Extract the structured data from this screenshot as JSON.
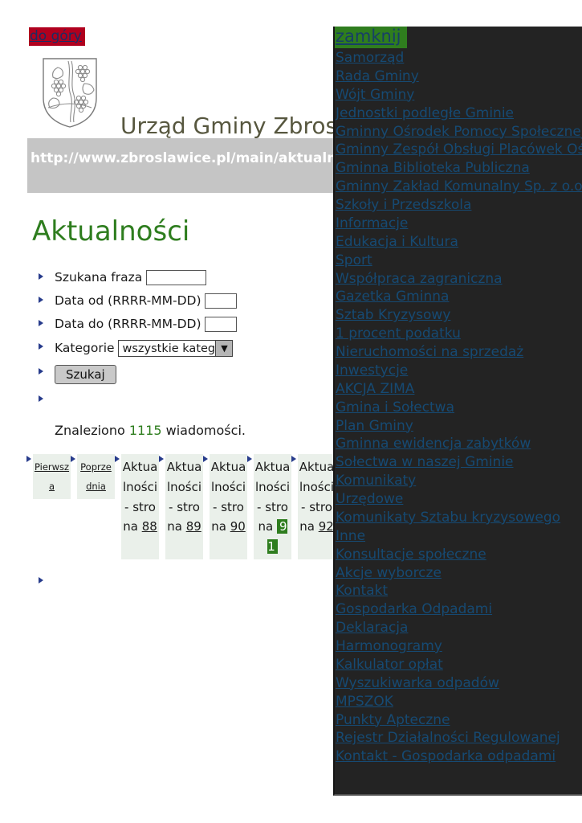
{
  "page": {
    "back_to_top_label": "do góry",
    "site_title": "Urząd Gminy Zbrosławice",
    "url_bar_text": "http://www.zbroslawice.pl/main/aktualnosci/Charytaty",
    "heading": "Aktualności"
  },
  "search_form": {
    "phrase_label": "Szukana fraza",
    "phrase_value": "",
    "date_from_label": "Data od (RRRR-MM-DD)",
    "date_from_value": "",
    "date_to_label": "Data do (RRRR-MM-DD)",
    "date_to_value": "",
    "category_label": "Kategorie",
    "category_selected": "wszystkie kategorie ...",
    "dropdown_arrow": "▼",
    "submit_label": "Szukaj",
    "results_prefix": "Znaleziono ",
    "results_count": "1115",
    "results_suffix": " wiadomości."
  },
  "pagination": {
    "first_label": "Pierwsza",
    "prev_label": "Poprzednia",
    "page_prefix": "Aktualności - strona ",
    "pages": [
      "88",
      "89",
      "90",
      "91",
      "92"
    ],
    "current_page": "91"
  },
  "sidebar": {
    "close_label": "zamknij",
    "items": [
      "Samorząd",
      "Rada Gminy",
      "Wójt Gminy",
      "Jednostki podległe Gminie",
      "Gminny Ośrodek Pomocy Społecznej",
      "Gminny Zespół Obsługi Placówek Oświatowych",
      "Gminna Biblioteka Publiczna",
      "Gminny Zakład Komunalny Sp. z o.o.",
      "Szkoły i Przedszkola",
      "Informacje",
      "Edukacja i Kultura",
      "Sport",
      "Współpraca zagraniczna",
      "Gazetka Gminna",
      "Sztab Kryzysowy",
      "1 procent podatku",
      "Nieruchomości na sprzedaż",
      "Inwestycje",
      "AKCJA ZIMA",
      "Gmina i Sołectwa",
      "Plan Gminy",
      "Gminna ewidencja zabytków",
      "Sołectwa w naszej Gminie",
      "Komunikaty",
      "Urzędowe",
      "Komunikaty Sztabu kryzysowego",
      "Inne",
      "Konsultacje społeczne",
      "Akcje wyborcze",
      "Kontakt",
      "Gospodarka Odpadami",
      "Deklaracja",
      "Harmonogramy",
      "Kalkulator opłat",
      "Wyszukiwarka odpadów",
      "MPSZOK",
      "Punkty Apteczne",
      "Rejestr Działalności Regulowanej",
      "Kontakt - Gospodarka odpadami"
    ]
  },
  "colors": {
    "accent_green": "#2e7d1e",
    "back_top_red": "#b0001e",
    "sidebar_bg": "#232323",
    "sidebar_link": "#164a73",
    "url_bar_bg": "#c5c5c5",
    "title_olive": "#57573f",
    "pagination_cell_bg": "#eaf0ea",
    "bullet_navy": "#283c8c"
  }
}
